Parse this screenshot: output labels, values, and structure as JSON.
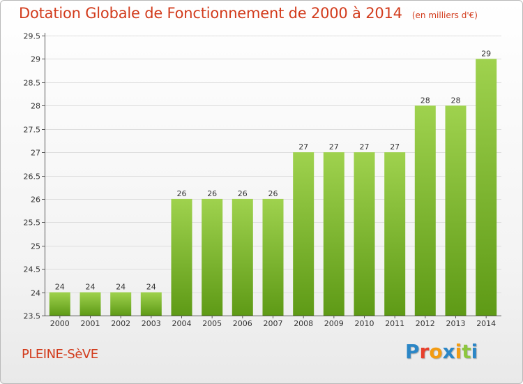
{
  "header": {
    "title": "Dotation Globale de Fonctionnement de 2000 à 2014",
    "unit": "(en milliers d'€)"
  },
  "footer": {
    "municipality": "PLEINE-SèVE",
    "logo_letters": [
      "P",
      "r",
      "o",
      "x",
      "i",
      "t",
      "i"
    ],
    "logo_colors": [
      "#2b86c6",
      "#e8402c",
      "#f39c12",
      "#2b86c6",
      "#f39c12",
      "#8dc63f",
      "#2b86c6"
    ]
  },
  "colors": {
    "bar_top": "#9fd24e",
    "bar_bottom": "#5e9a16",
    "grid": "#dddddd",
    "axis": "#555555"
  },
  "chart_data": {
    "type": "bar",
    "title": "Dotation Globale de Fonctionnement de 2000 à 2014",
    "xlabel": "",
    "ylabel": "(en milliers d'€)",
    "categories": [
      "2000",
      "2001",
      "2002",
      "2003",
      "2004",
      "2005",
      "2006",
      "2007",
      "2008",
      "2009",
      "2010",
      "2011",
      "2012",
      "2013",
      "2014"
    ],
    "values": [
      24,
      24,
      24,
      24,
      26,
      26,
      26,
      26,
      27,
      27,
      27,
      27,
      28,
      28,
      29
    ],
    "ylim": [
      23.5,
      29.5
    ],
    "yticks": [
      23.5,
      24,
      24.5,
      25,
      25.5,
      26,
      26.5,
      27,
      27.5,
      28,
      28.5,
      29,
      29.5
    ],
    "ytick_labels": [
      "23.5",
      "24",
      "24.5",
      "25",
      "25.5",
      "26",
      "26.5",
      "27",
      "27.5",
      "28",
      "28.5",
      "29",
      "29.5"
    ],
    "grid": true,
    "data_labels": true
  }
}
